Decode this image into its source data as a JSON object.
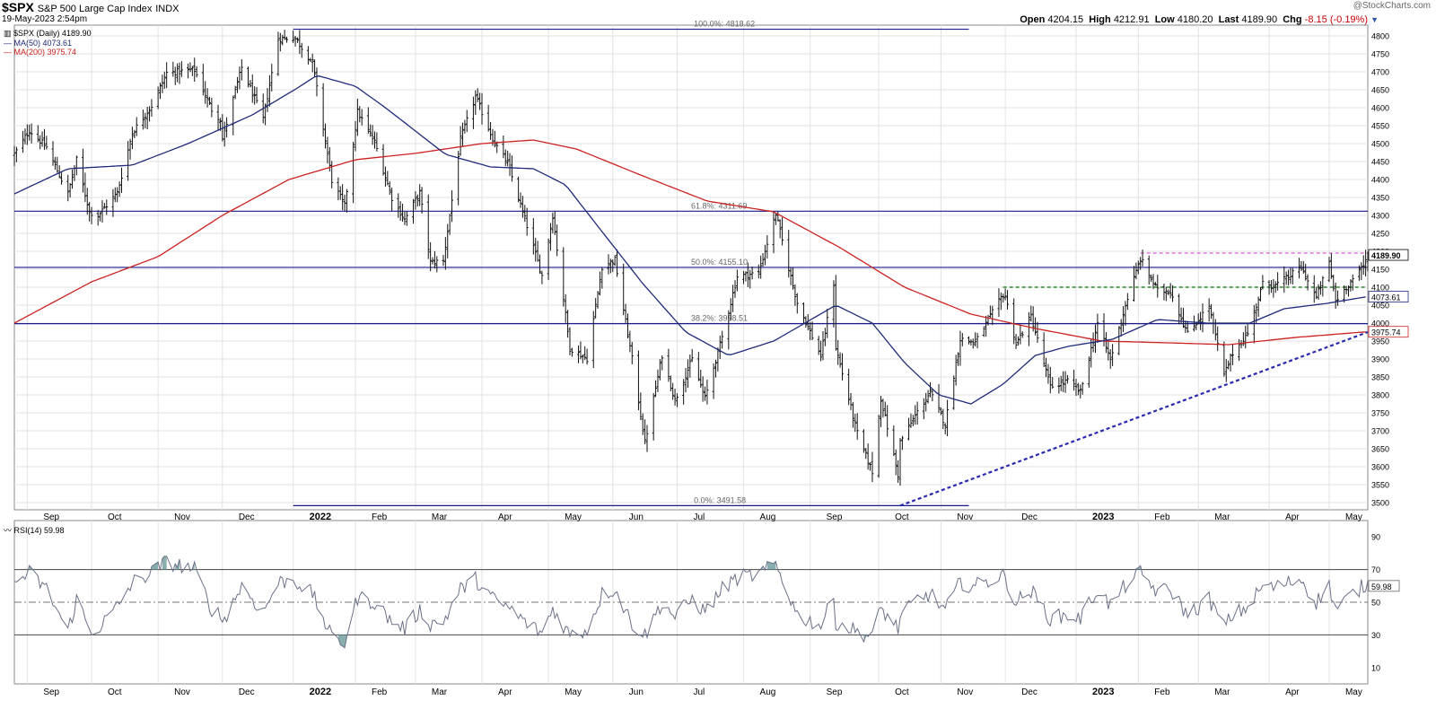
{
  "header": {
    "symbol": "$SPX",
    "description": "S&P 500 Large Cap Index",
    "exchange": "INDX",
    "datetime": "19-May-2023 2:54pm",
    "open_label": "Open",
    "open": "4204.15",
    "high_label": "High",
    "high": "4212.91",
    "low_label": "Low",
    "low": "4180.20",
    "last_label": "Last",
    "last": "4189.90",
    "chg_label": "Chg",
    "chg": "-8.15 (-0.19%)",
    "watermark": "@StockCharts.com"
  },
  "legend": {
    "price": "$SPX (Daily) 4189.90",
    "ma50": "MA(50) 4073.61",
    "ma200": "MA(200) 3975.74",
    "rsi": "RSI(14) 59.98"
  },
  "colors": {
    "bars": "#111111",
    "ma50": "#1f2a7a",
    "ma200": "#cc2222",
    "hlines": "#1a1a8c",
    "trendline": "#2a2ab0",
    "resist_green": "#2a8a2a",
    "resist_magenta": "#cc33cc",
    "rsi_line": "#6a7088",
    "rsi_fill": "#6a9a9a"
  },
  "chart_data": [
    {
      "type": "ohlc",
      "title": "$SPX (Daily) 4189.90",
      "ylim": [
        3480,
        4830
      ],
      "y_ticks": [
        3500,
        3550,
        3600,
        3650,
        3700,
        3750,
        3800,
        3850,
        3900,
        3950,
        4000,
        4050,
        4100,
        4150,
        4200,
        4250,
        4300,
        4350,
        4400,
        4450,
        4500,
        4550,
        4600,
        4650,
        4700,
        4750,
        4800
      ],
      "x_range": [
        "2021-08-26",
        "2023-05-19"
      ],
      "x_labels": [
        {
          "label": "Sep",
          "date": "2021-09-01"
        },
        {
          "label": "Oct",
          "date": "2021-10-01"
        },
        {
          "label": "Nov",
          "date": "2021-11-01"
        },
        {
          "label": "Dec",
          "date": "2021-12-01"
        },
        {
          "label": "2022",
          "date": "2022-01-03",
          "bold": true
        },
        {
          "label": "Feb",
          "date": "2022-02-01"
        },
        {
          "label": "Mar",
          "date": "2022-03-01"
        },
        {
          "label": "Apr",
          "date": "2022-04-01"
        },
        {
          "label": "May",
          "date": "2022-05-02"
        },
        {
          "label": "Jun",
          "date": "2022-06-01"
        },
        {
          "label": "Jul",
          "date": "2022-07-01"
        },
        {
          "label": "Aug",
          "date": "2022-08-01"
        },
        {
          "label": "Sep",
          "date": "2022-09-01"
        },
        {
          "label": "Oct",
          "date": "2022-10-03"
        },
        {
          "label": "Nov",
          "date": "2022-11-01"
        },
        {
          "label": "Dec",
          "date": "2022-12-01"
        },
        {
          "label": "2023",
          "date": "2023-01-03",
          "bold": true
        },
        {
          "label": "Feb",
          "date": "2023-02-01"
        },
        {
          "label": "Mar",
          "date": "2023-03-01"
        },
        {
          "label": "Apr",
          "date": "2023-04-03"
        },
        {
          "label": "May",
          "date": "2023-05-01"
        }
      ],
      "grid": true,
      "close_anchors": [
        [
          "2021-08-26",
          4470
        ],
        [
          "2021-09-02",
          4537
        ],
        [
          "2021-09-10",
          4490
        ],
        [
          "2021-09-20",
          4360
        ],
        [
          "2021-09-24",
          4455
        ],
        [
          "2021-09-30",
          4310
        ],
        [
          "2021-10-04",
          4300
        ],
        [
          "2021-10-13",
          4363
        ],
        [
          "2021-10-20",
          4530
        ],
        [
          "2021-10-29",
          4605
        ],
        [
          "2021-11-05",
          4697
        ],
        [
          "2021-11-18",
          4705
        ],
        [
          "2021-11-26",
          4595
        ],
        [
          "2021-11-30",
          4567
        ],
        [
          "2021-12-01",
          4513
        ],
        [
          "2021-12-10",
          4712
        ],
        [
          "2021-12-20",
          4568
        ],
        [
          "2021-12-27",
          4791
        ],
        [
          "2022-01-03",
          4796
        ],
        [
          "2022-01-04",
          4793
        ],
        [
          "2022-01-12",
          4726
        ],
        [
          "2022-01-21",
          4398
        ],
        [
          "2022-01-27",
          4326
        ],
        [
          "2022-02-02",
          4589
        ],
        [
          "2022-02-10",
          4504
        ],
        [
          "2022-02-18",
          4349
        ],
        [
          "2022-02-24",
          4288
        ],
        [
          "2022-03-03",
          4363
        ],
        [
          "2022-03-08",
          4170
        ],
        [
          "2022-03-14",
          4173
        ],
        [
          "2022-03-22",
          4512
        ],
        [
          "2022-03-29",
          4631
        ],
        [
          "2022-04-07",
          4500
        ],
        [
          "2022-04-13",
          4446
        ],
        [
          "2022-04-22",
          4271
        ],
        [
          "2022-04-29",
          4132
        ],
        [
          "2022-05-04",
          4300
        ],
        [
          "2022-05-12",
          3930
        ],
        [
          "2022-05-20",
          3901
        ],
        [
          "2022-05-27",
          4158
        ],
        [
          "2022-06-02",
          4176
        ],
        [
          "2022-06-10",
          3900
        ],
        [
          "2022-06-16",
          3667
        ],
        [
          "2022-06-24",
          3911
        ],
        [
          "2022-06-30",
          3785
        ],
        [
          "2022-07-08",
          3899
        ],
        [
          "2022-07-14",
          3790
        ],
        [
          "2022-07-22",
          3961
        ],
        [
          "2022-07-29",
          4130
        ],
        [
          "2022-08-08",
          4140
        ],
        [
          "2022-08-16",
          4305
        ],
        [
          "2022-08-23",
          4128
        ],
        [
          "2022-08-26",
          4057
        ],
        [
          "2022-09-06",
          3908
        ],
        [
          "2022-09-12",
          4110
        ],
        [
          "2022-09-13",
          3932
        ],
        [
          "2022-09-23",
          3693
        ],
        [
          "2022-09-30",
          3585
        ],
        [
          "2022-10-04",
          3790
        ],
        [
          "2022-10-12",
          3577
        ],
        [
          "2022-10-13",
          3669
        ],
        [
          "2022-10-21",
          3752
        ],
        [
          "2022-10-27",
          3807
        ],
        [
          "2022-11-03",
          3719
        ],
        [
          "2022-11-10",
          3956
        ],
        [
          "2022-11-17",
          3946
        ],
        [
          "2022-11-30",
          4080
        ],
        [
          "2022-12-01",
          4076
        ],
        [
          "2022-12-06",
          3941
        ],
        [
          "2022-12-13",
          4019
        ],
        [
          "2022-12-22",
          3822
        ],
        [
          "2022-12-30",
          3839
        ],
        [
          "2023-01-05",
          3808
        ],
        [
          "2023-01-13",
          3999
        ],
        [
          "2023-01-19",
          3898
        ],
        [
          "2023-01-27",
          4070
        ],
        [
          "2023-02-02",
          4179
        ],
        [
          "2023-02-10",
          4090
        ],
        [
          "2023-02-16",
          4090
        ],
        [
          "2023-02-24",
          3970
        ],
        [
          "2023-03-06",
          4048
        ],
        [
          "2023-03-13",
          3855
        ],
        [
          "2023-03-17",
          3917
        ],
        [
          "2023-03-24",
          3971
        ],
        [
          "2023-03-31",
          4109
        ],
        [
          "2023-04-06",
          4105
        ],
        [
          "2023-04-14",
          4137
        ],
        [
          "2023-04-18",
          4154
        ],
        [
          "2023-04-25",
          4071
        ],
        [
          "2023-05-01",
          4167
        ],
        [
          "2023-05-04",
          4061
        ],
        [
          "2023-05-12",
          4124
        ],
        [
          "2023-05-17",
          4158
        ],
        [
          "2023-05-19",
          4190
        ]
      ],
      "ma50_anchors": [
        [
          "2021-08-26",
          4360
        ],
        [
          "2021-09-20",
          4430
        ],
        [
          "2021-10-20",
          4440
        ],
        [
          "2021-11-15",
          4500
        ],
        [
          "2021-12-15",
          4580
        ],
        [
          "2022-01-05",
          4655
        ],
        [
          "2022-01-14",
          4690
        ],
        [
          "2022-02-01",
          4660
        ],
        [
          "2022-02-15",
          4600
        ],
        [
          "2022-03-15",
          4470
        ],
        [
          "2022-04-05",
          4435
        ],
        [
          "2022-04-25",
          4430
        ],
        [
          "2022-05-10",
          4385
        ],
        [
          "2022-05-25",
          4270
        ],
        [
          "2022-06-15",
          4110
        ],
        [
          "2022-07-05",
          3975
        ],
        [
          "2022-07-25",
          3910
        ],
        [
          "2022-08-15",
          3950
        ],
        [
          "2022-08-31",
          4005
        ],
        [
          "2022-09-13",
          4050
        ],
        [
          "2022-09-30",
          4000
        ],
        [
          "2022-10-15",
          3890
        ],
        [
          "2022-10-31",
          3800
        ],
        [
          "2022-11-15",
          3775
        ],
        [
          "2022-11-30",
          3830
        ],
        [
          "2022-12-15",
          3910
        ],
        [
          "2022-12-30",
          3935
        ],
        [
          "2023-01-20",
          3955
        ],
        [
          "2023-02-10",
          4010
        ],
        [
          "2023-03-05",
          4000
        ],
        [
          "2023-03-25",
          4000
        ],
        [
          "2023-04-10",
          4040
        ],
        [
          "2023-04-30",
          4055
        ],
        [
          "2023-05-19",
          4074
        ]
      ],
      "ma200_anchors": [
        [
          "2021-08-26",
          4000
        ],
        [
          "2021-10-01",
          4115
        ],
        [
          "2021-11-01",
          4185
        ],
        [
          "2021-12-01",
          4300
        ],
        [
          "2022-01-01",
          4400
        ],
        [
          "2022-02-01",
          4455
        ],
        [
          "2022-03-01",
          4473
        ],
        [
          "2022-04-01",
          4500
        ],
        [
          "2022-04-25",
          4510
        ],
        [
          "2022-05-15",
          4485
        ],
        [
          "2022-06-15",
          4410
        ],
        [
          "2022-07-15",
          4340
        ],
        [
          "2022-08-15",
          4310
        ],
        [
          "2022-09-15",
          4210
        ],
        [
          "2022-10-15",
          4100
        ],
        [
          "2022-11-15",
          4025
        ],
        [
          "2022-12-15",
          3985
        ],
        [
          "2023-01-15",
          3950
        ],
        [
          "2023-02-15",
          3945
        ],
        [
          "2023-03-15",
          3940
        ],
        [
          "2023-04-15",
          3960
        ],
        [
          "2023-05-19",
          3976
        ]
      ],
      "fib_levels": [
        {
          "label": "100.0%: 4818.62",
          "value": 4818.62,
          "x_from": "2022-01-03",
          "x_to": "2022-11-14"
        },
        {
          "label": "61.8%: 4311.69",
          "value": 4311.69,
          "x_from": "2021-08-26",
          "x_to": "2023-05-19"
        },
        {
          "label": "50.0%: 4155.10",
          "value": 4155.1,
          "x_from": "2021-08-26",
          "x_to": "2023-05-19"
        },
        {
          "label": "38.2%: 3998.51",
          "value": 3998.51,
          "x_from": "2021-08-26",
          "x_to": "2023-05-19"
        },
        {
          "label": "0.0%: 3491.58",
          "value": 3491.58,
          "x_from": "2022-01-03",
          "x_to": "2022-11-14"
        }
      ],
      "trendline": {
        "from": [
          "2022-10-13",
          3491.58
        ],
        "to": [
          "2023-05-19",
          3975
        ]
      },
      "resistance_green": {
        "value": 4100,
        "from": "2022-11-30",
        "to": "2023-05-19"
      },
      "resistance_magenta": {
        "value": 4195,
        "from": "2023-02-02",
        "to": "2023-05-19"
      },
      "price_tags": [
        {
          "label": "4189.90",
          "value": 4189.9,
          "style": "last"
        },
        {
          "label": "4073.61",
          "value": 4073.61,
          "style": "ma50"
        },
        {
          "label": "3975.74",
          "value": 3975.74,
          "style": "ma200"
        }
      ]
    },
    {
      "type": "line",
      "title": "RSI(14) 59.98",
      "ylim": [
        0,
        100
      ],
      "y_ticks": [
        10,
        30,
        50,
        70,
        90
      ],
      "bands": {
        "upper": 70,
        "lower": 30,
        "mid": 50
      },
      "rsi_anchors": [
        [
          "2021-08-26",
          62
        ],
        [
          "2021-09-02",
          68
        ],
        [
          "2021-09-10",
          58
        ],
        [
          "2021-09-20",
          32
        ],
        [
          "2021-09-24",
          52
        ],
        [
          "2021-09-30",
          33
        ],
        [
          "2021-10-04",
          34
        ],
        [
          "2021-10-13",
          47
        ],
        [
          "2021-10-20",
          62
        ],
        [
          "2021-10-29",
          68
        ],
        [
          "2021-11-05",
          75
        ],
        [
          "2021-11-18",
          70
        ],
        [
          "2021-11-26",
          46
        ],
        [
          "2021-11-30",
          42
        ],
        [
          "2021-12-01",
          38
        ],
        [
          "2021-12-10",
          60
        ],
        [
          "2021-12-20",
          44
        ],
        [
          "2021-12-27",
          62
        ],
        [
          "2022-01-03",
          64
        ],
        [
          "2022-01-12",
          55
        ],
        [
          "2022-01-21",
          28
        ],
        [
          "2022-01-27",
          25
        ],
        [
          "2022-02-02",
          53
        ],
        [
          "2022-02-10",
          50
        ],
        [
          "2022-02-18",
          38
        ],
        [
          "2022-02-24",
          34
        ],
        [
          "2022-03-03",
          45
        ],
        [
          "2022-03-08",
          37
        ],
        [
          "2022-03-14",
          38
        ],
        [
          "2022-03-22",
          58
        ],
        [
          "2022-03-29",
          64
        ],
        [
          "2022-04-07",
          51
        ],
        [
          "2022-04-13",
          47
        ],
        [
          "2022-04-22",
          37
        ],
        [
          "2022-04-29",
          31
        ],
        [
          "2022-05-04",
          46
        ],
        [
          "2022-05-12",
          30
        ],
        [
          "2022-05-20",
          33
        ],
        [
          "2022-05-27",
          55
        ],
        [
          "2022-06-02",
          58
        ],
        [
          "2022-06-10",
          37
        ],
        [
          "2022-06-16",
          30
        ],
        [
          "2022-06-24",
          50
        ],
        [
          "2022-06-30",
          41
        ],
        [
          "2022-07-08",
          52
        ],
        [
          "2022-07-14",
          44
        ],
        [
          "2022-07-22",
          58
        ],
        [
          "2022-07-29",
          65
        ],
        [
          "2022-08-08",
          67
        ],
        [
          "2022-08-16",
          73
        ],
        [
          "2022-08-23",
          52
        ],
        [
          "2022-08-26",
          42
        ],
        [
          "2022-09-06",
          36
        ],
        [
          "2022-09-12",
          52
        ],
        [
          "2022-09-13",
          38
        ],
        [
          "2022-09-23",
          32
        ],
        [
          "2022-09-30",
          29
        ],
        [
          "2022-10-04",
          46
        ],
        [
          "2022-10-12",
          34
        ],
        [
          "2022-10-13",
          40
        ],
        [
          "2022-10-21",
          52
        ],
        [
          "2022-10-27",
          55
        ],
        [
          "2022-11-03",
          45
        ],
        [
          "2022-11-10",
          62
        ],
        [
          "2022-11-17",
          60
        ],
        [
          "2022-11-30",
          66
        ],
        [
          "2022-12-01",
          65
        ],
        [
          "2022-12-06",
          50
        ],
        [
          "2022-12-13",
          57
        ],
        [
          "2022-12-22",
          40
        ],
        [
          "2022-12-30",
          42
        ],
        [
          "2023-01-05",
          40
        ],
        [
          "2023-01-13",
          58
        ],
        [
          "2023-01-19",
          48
        ],
        [
          "2023-01-27",
          62
        ],
        [
          "2023-02-02",
          68
        ],
        [
          "2023-02-10",
          56
        ],
        [
          "2023-02-16",
          58
        ],
        [
          "2023-02-24",
          42
        ],
        [
          "2023-03-06",
          52
        ],
        [
          "2023-03-13",
          35
        ],
        [
          "2023-03-17",
          42
        ],
        [
          "2023-03-24",
          47
        ],
        [
          "2023-03-31",
          60
        ],
        [
          "2023-04-06",
          59
        ],
        [
          "2023-04-14",
          63
        ],
        [
          "2023-04-18",
          64
        ],
        [
          "2023-04-25",
          50
        ],
        [
          "2023-05-01",
          60
        ],
        [
          "2023-05-04",
          46
        ],
        [
          "2023-05-12",
          55
        ],
        [
          "2023-05-17",
          60
        ],
        [
          "2023-05-19",
          60
        ]
      ],
      "value_tag": "59.98",
      "x_labels_ref": 0
    }
  ]
}
